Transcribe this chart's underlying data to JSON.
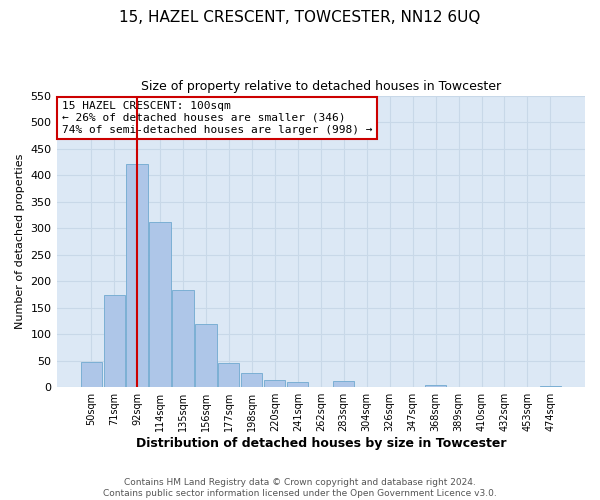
{
  "title": "15, HAZEL CRESCENT, TOWCESTER, NN12 6UQ",
  "subtitle": "Size of property relative to detached houses in Towcester",
  "xlabel": "Distribution of detached houses by size in Towcester",
  "ylabel": "Number of detached properties",
  "footer_line1": "Contains HM Land Registry data © Crown copyright and database right 2024.",
  "footer_line2": "Contains public sector information licensed under the Open Government Licence v3.0.",
  "bar_labels": [
    "50sqm",
    "71sqm",
    "92sqm",
    "114sqm",
    "135sqm",
    "156sqm",
    "177sqm",
    "198sqm",
    "220sqm",
    "241sqm",
    "262sqm",
    "283sqm",
    "304sqm",
    "326sqm",
    "347sqm",
    "368sqm",
    "389sqm",
    "410sqm",
    "432sqm",
    "453sqm",
    "474sqm"
  ],
  "bar_values": [
    47,
    174,
    420,
    311,
    184,
    120,
    46,
    27,
    14,
    10,
    0,
    12,
    0,
    0,
    0,
    4,
    0,
    0,
    0,
    0,
    3
  ],
  "bar_color": "#aec6e8",
  "bar_edge_color": "#7bafd4",
  "grid_color": "#c8d8e8",
  "background_color": "#dce8f5",
  "vline_color": "#cc0000",
  "annotation_title": "15 HAZEL CRESCENT: 100sqm",
  "annotation_line2": "← 26% of detached houses are smaller (346)",
  "annotation_line3": "74% of semi-detached houses are larger (998) →",
  "annotation_box_color": "#cc0000",
  "ylim": [
    0,
    550
  ],
  "yticks": [
    0,
    50,
    100,
    150,
    200,
    250,
    300,
    350,
    400,
    450,
    500,
    550
  ]
}
